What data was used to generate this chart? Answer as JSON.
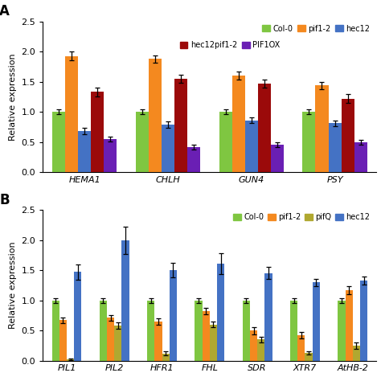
{
  "panel_A": {
    "categories": [
      "HEMA1",
      "CHLH",
      "GUN4",
      "PSY"
    ],
    "series": [
      {
        "label": "Col-0",
        "color": "#7fc641",
        "values": [
          1.0,
          1.0,
          1.0,
          1.0
        ],
        "errors": [
          0.04,
          0.04,
          0.04,
          0.04
        ]
      },
      {
        "label": "pif1-2",
        "color": "#f4891f",
        "values": [
          1.93,
          1.88,
          1.6,
          1.44
        ],
        "errors": [
          0.07,
          0.06,
          0.07,
          0.06
        ]
      },
      {
        "label": "hec12",
        "color": "#4472c4",
        "values": [
          0.68,
          0.79,
          0.86,
          0.81
        ],
        "errors": [
          0.05,
          0.05,
          0.05,
          0.05
        ]
      },
      {
        "label": "hec12pif1-2",
        "color": "#9b0a0a",
        "values": [
          1.33,
          1.55,
          1.47,
          1.22
        ],
        "errors": [
          0.07,
          0.07,
          0.07,
          0.07
        ]
      },
      {
        "label": "PIF1OX",
        "color": "#6a1fb4",
        "values": [
          0.55,
          0.42,
          0.45,
          0.49
        ],
        "errors": [
          0.04,
          0.04,
          0.04,
          0.04
        ]
      }
    ],
    "ylabel": "Relative expression",
    "ylim": [
      0,
      2.5
    ],
    "yticks": [
      0,
      0.5,
      1.0,
      1.5,
      2.0,
      2.5
    ],
    "legend_row1": [
      "Col-0",
      "pif1-2",
      "hec12"
    ],
    "legend_row2": [
      "hec12pif1-2",
      "PIF1OX"
    ]
  },
  "panel_B": {
    "categories": [
      "PIL1",
      "PIL2",
      "HFR1",
      "FHL",
      "SDR",
      "XTR7",
      "AtHB-2"
    ],
    "series": [
      {
        "label": "Col-0",
        "color": "#7fc641",
        "values": [
          1.0,
          1.0,
          1.0,
          1.0,
          1.0,
          1.0,
          1.0
        ],
        "errors": [
          0.04,
          0.04,
          0.04,
          0.04,
          0.04,
          0.04,
          0.04
        ]
      },
      {
        "label": "pif1-2",
        "color": "#f4891f",
        "values": [
          0.67,
          0.71,
          0.65,
          0.82,
          0.5,
          0.42,
          1.17
        ],
        "errors": [
          0.05,
          0.05,
          0.05,
          0.05,
          0.06,
          0.05,
          0.07
        ]
      },
      {
        "label": "pifQ",
        "color": "#b0a830",
        "values": [
          0.02,
          0.58,
          0.12,
          0.6,
          0.35,
          0.13,
          0.25
        ],
        "errors": [
          0.01,
          0.05,
          0.03,
          0.05,
          0.05,
          0.03,
          0.05
        ]
      },
      {
        "label": "hec12",
        "color": "#4472c4",
        "values": [
          1.47,
          2.0,
          1.5,
          1.61,
          1.45,
          1.3,
          1.33
        ],
        "errors": [
          0.13,
          0.23,
          0.12,
          0.17,
          0.1,
          0.06,
          0.07
        ]
      }
    ],
    "ylabel": "Relative expression",
    "ylim": [
      0,
      2.5
    ],
    "yticks": [
      0,
      0.5,
      1.0,
      1.5,
      2.0,
      2.5
    ],
    "legend_row1": [
      "Col-0",
      "pif1-2",
      "pifQ",
      "hec12"
    ]
  },
  "fig_width": 4.74,
  "fig_height": 4.69,
  "dpi": 100
}
